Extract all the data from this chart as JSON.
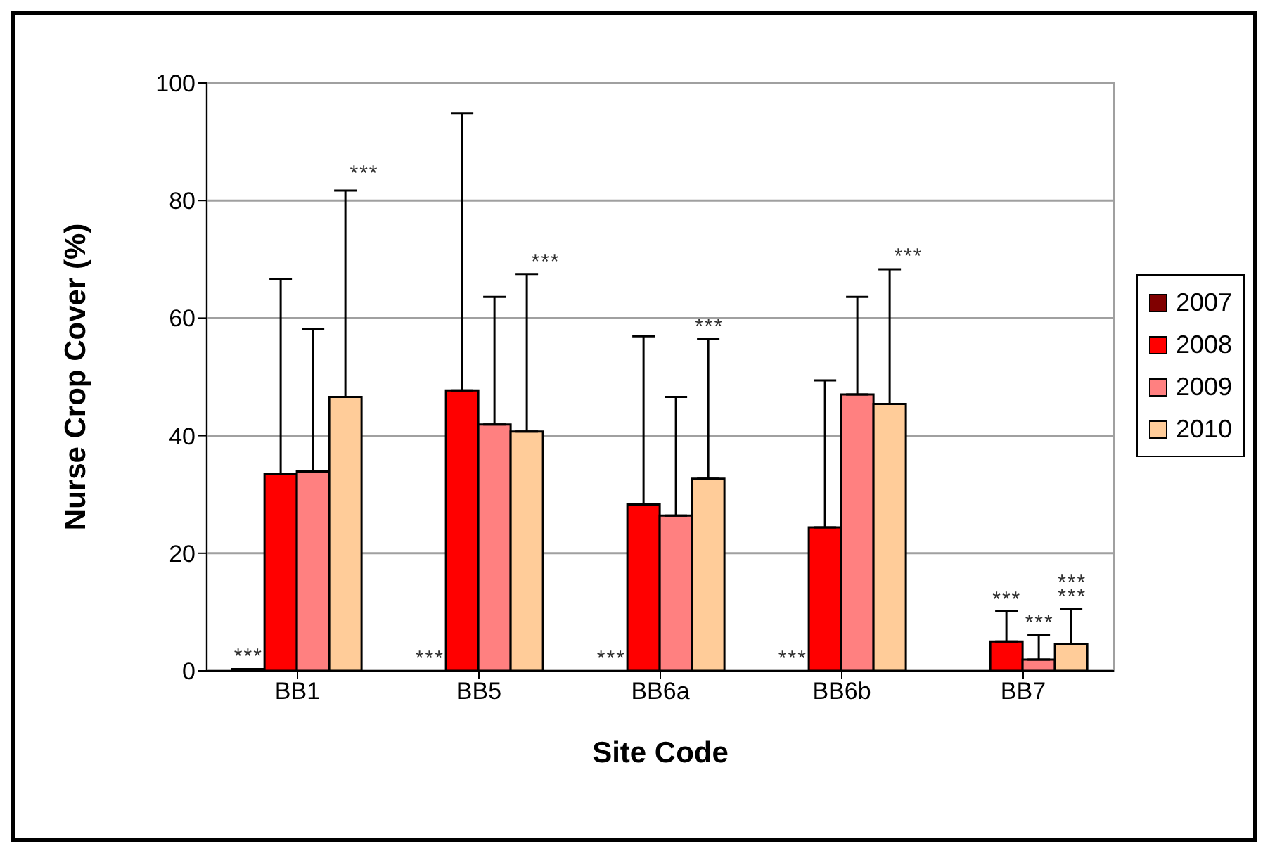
{
  "chart_data": {
    "type": "bar",
    "xlabel": "Site Code",
    "ylabel": "Nurse Crop Cover (%)",
    "categories": [
      "BB1",
      "BB5",
      "BB6a",
      "BB6b",
      "BB7"
    ],
    "series": [
      {
        "name": "2007",
        "color": "#800000",
        "values": [
          0.3,
          0,
          0,
          0,
          0
        ],
        "errors": [
          null,
          null,
          null,
          null,
          null
        ]
      },
      {
        "name": "2008",
        "color": "#ff0000",
        "values": [
          33.5,
          47.7,
          28.3,
          24.4,
          5.0
        ],
        "errors": [
          [
            33.5,
            66.7
          ],
          [
            47.7,
            94.9
          ],
          [
            28.3,
            56.9
          ],
          [
            24.4,
            49.4
          ],
          [
            5.0,
            10.1
          ]
        ]
      },
      {
        "name": "2009",
        "color": "#ff8080",
        "values": [
          33.9,
          41.9,
          26.4,
          47.0,
          1.9
        ],
        "errors": [
          [
            33.9,
            58.1
          ],
          [
            41.9,
            63.6
          ],
          [
            26.4,
            46.6
          ],
          [
            47.0,
            63.6
          ],
          [
            1.9,
            6.1
          ]
        ]
      },
      {
        "name": "2010",
        "color": "#ffcc99",
        "values": [
          46.6,
          40.7,
          32.7,
          45.4,
          4.6
        ],
        "errors": [
          [
            46.6,
            81.7
          ],
          [
            40.7,
            67.5
          ],
          [
            32.7,
            56.5
          ],
          [
            45.4,
            68.3
          ],
          [
            4.6,
            10.5
          ]
        ]
      }
    ],
    "ylim": [
      0,
      100
    ],
    "yticks": [
      0,
      20,
      40,
      60,
      80,
      100
    ],
    "grid": "y",
    "legend": "right",
    "annotations": [
      {
        "text": "***",
        "x": "BB1",
        "y": 0.3
      },
      "***",
      {
        "text": "***",
        "x": "BB5",
        "y": 0
      },
      "***",
      {
        "text": "***",
        "x": "BB6a",
        "y": 0
      },
      {
        "text": "***",
        "x": "BB6a",
        "y": 56.5
      },
      {
        "text": "***",
        "x": "BB6b",
        "y": 0
      },
      "***",
      {
        "text": "***",
        "x": "BB7",
        "y": 10.1
      },
      {
        "text": "***",
        "x": "BB7",
        "y": 6.1
      },
      {
        "text": "***",
        "x": "BB7",
        "y": 10.5
      },
      {
        "text": "***",
        "x": "BB7",
        "y": 10.5
      }
    ]
  }
}
